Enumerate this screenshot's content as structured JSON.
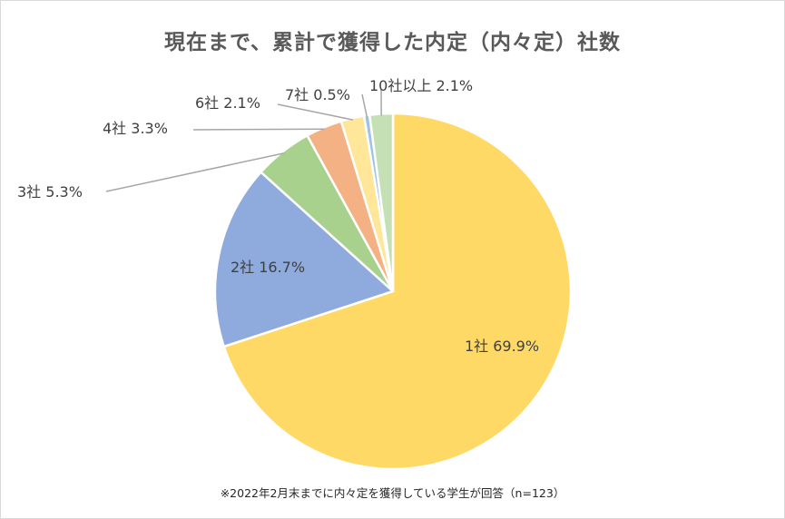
{
  "chart_data": {
    "type": "pie",
    "title": "現在まで、累計で獲得した内定（内々定）社数",
    "footnote": "※2022年2月末までに内々定を獲得している学生が回答（n=123）",
    "start_angle": "12 o'clock",
    "direction": "clockwise",
    "slices": [
      {
        "label": "1社",
        "value": 69.9,
        "display": "1社 69.9%",
        "color": "#FFD966",
        "label_position": "inside"
      },
      {
        "label": "2社",
        "value": 16.7,
        "display": "2社 16.7%",
        "color": "#8FAADC",
        "label_position": "inside"
      },
      {
        "label": "3社",
        "value": 5.3,
        "display": "3社 5.3%",
        "color": "#A9D18E",
        "label_position": "outside"
      },
      {
        "label": "4社",
        "value": 3.3,
        "display": "4社 3.3%",
        "color": "#F4B183",
        "label_position": "outside"
      },
      {
        "label": "6社",
        "value": 2.1,
        "display": "6社 2.1%",
        "color": "#FFE699",
        "label_position": "outside"
      },
      {
        "label": "7社",
        "value": 0.5,
        "display": "7社 0.5%",
        "color": "#9DC3E6",
        "label_position": "outside"
      },
      {
        "label": "10社以上",
        "value": 2.1,
        "display": "10社以上 2.1%",
        "color": "#C5E0B4",
        "label_position": "outside"
      }
    ],
    "colors": {
      "leader_line": "#a6a6a6",
      "slice_border": "#ffffff",
      "label_text": "#404040",
      "title_text": "#595959"
    }
  }
}
